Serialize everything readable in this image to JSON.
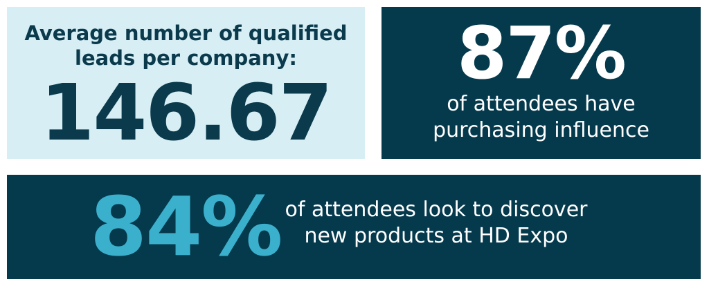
{
  "leads_box": {
    "heading_lines": [
      "Average number of qualified",
      "leads per company:"
    ],
    "figure": "146.67"
  },
  "influence_box": {
    "figure": "87%",
    "caption_lines": [
      "of attendees have",
      "purchasing influence"
    ]
  },
  "discover_box": {
    "figure": "84%",
    "caption_lines": [
      "of attendees look to discover",
      "new products at HD Expo"
    ]
  }
}
